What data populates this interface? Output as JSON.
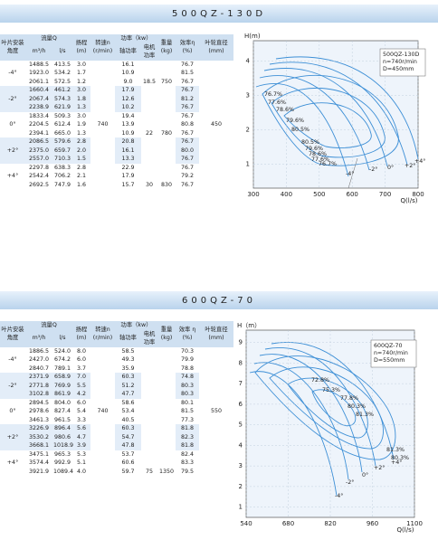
{
  "sections": [
    {
      "title": "500QZ-130D",
      "table": {
        "headers": {
          "angle": "叶片安装角度",
          "flow": "流量Q",
          "flow_m3h": "m³/h",
          "flow_ls": "l/s",
          "head": "扬程 (m)",
          "speed": "转速n (r/min)",
          "power": "功率（kw）",
          "shaft_power": "轴功率",
          "motor_power": "电机功率",
          "weight": "重量 (kg)",
          "efficiency": "效率η (%)",
          "diameter": "叶轮直径 (mm)"
        },
        "speed": "740",
        "diameter": "450",
        "blocks": [
          {
            "motor_power": "18.5",
            "weight": "750",
            "angles": [
              {
                "angle": "-4°",
                "rows": [
                  [
                    "1488.5",
                    "413.5",
                    "3.0",
                    "16.1",
                    "76.7"
                  ],
                  [
                    "1923.0",
                    "534.2",
                    "1.7",
                    "10.9",
                    "81.5"
                  ],
                  [
                    "2061.1",
                    "572.5",
                    "1.2",
                    "9.0",
                    "76.7"
                  ]
                ]
              }
            ]
          },
          {
            "motor_power": "22",
            "weight": "780",
            "angles": [
              {
                "angle": "-2°",
                "rows": [
                  [
                    "1660.4",
                    "461.2",
                    "3.0",
                    "17.9",
                    "76.7"
                  ],
                  [
                    "2067.4",
                    "574.3",
                    "1.8",
                    "12.6",
                    "81.2"
                  ],
                  [
                    "2238.9",
                    "621.9",
                    "1.3",
                    "10.2",
                    "76.7"
                  ]
                ]
              },
              {
                "angle": "0°",
                "rows": [
                  [
                    "1833.4",
                    "509.3",
                    "3.0",
                    "19.4",
                    "76.7"
                  ],
                  [
                    "2204.5",
                    "612.4",
                    "1.9",
                    "13.9",
                    "80.8"
                  ],
                  [
                    "2394.1",
                    "665.0",
                    "1.3",
                    "10.9",
                    "76.7"
                  ]
                ]
              }
            ]
          },
          {
            "motor_power": "30",
            "weight": "830",
            "angles": [
              {
                "angle": "+2°",
                "rows": [
                  [
                    "2086.5",
                    "579.6",
                    "2.8",
                    "20.8",
                    "76.7"
                  ],
                  [
                    "2375.0",
                    "659.7",
                    "2.0",
                    "16.1",
                    "80.0"
                  ],
                  [
                    "2557.0",
                    "710.3",
                    "1.5",
                    "13.3",
                    "76.7"
                  ]
                ]
              },
              {
                "angle": "+4°",
                "rows": [
                  [
                    "2297.8",
                    "638.3",
                    "2.8",
                    "22.9",
                    "76.7"
                  ],
                  [
                    "2542.4",
                    "706.2",
                    "2.1",
                    "17.9",
                    "79.2"
                  ],
                  [
                    "2692.5",
                    "747.9",
                    "1.6",
                    "15.7",
                    "76.7"
                  ]
                ]
              }
            ]
          }
        ]
      },
      "chart": {
        "y_label": "H(m)",
        "x_label": "Q(l/s)",
        "xlim": [
          300,
          800
        ],
        "ylim": [
          0.3,
          4.6
        ],
        "xticks": [
          300,
          400,
          500,
          600,
          700,
          800
        ],
        "yticks": [
          1,
          2,
          3,
          4
        ],
        "note": [
          "500QZ-130D",
          "n=740r/min",
          "D=450mm"
        ],
        "efficiency_labels": [
          "76.7%",
          "77.6%",
          "78.6%",
          "79.6%",
          "80.5%",
          "80.5%",
          "79.6%",
          "78.6%",
          "77.6%",
          "76.7%"
        ],
        "angle_labels": [
          "-4°",
          "-2°",
          "0°",
          "+2°",
          "+4°"
        ]
      }
    },
    {
      "title": "600QZ-70",
      "table": {
        "headers": {
          "angle": "叶片安装角度",
          "flow": "流量Q",
          "flow_m3h": "m³/h",
          "flow_ls": "l/s",
          "head": "扬程 (m)",
          "speed": "转速n (r/min)",
          "power": "功率（kw）",
          "shaft_power": "轴功率",
          "motor_power": "电机功率",
          "weight": "重量 (kg)",
          "efficiency": "效率 η (%)",
          "diameter": "叶轮直径 (mm)"
        },
        "speed": "740",
        "diameter": "550",
        "blocks": [
          {
            "motor_power": "75",
            "weight": "1350",
            "angles": [
              {
                "angle": "-4°",
                "rows": [
                  [
                    "1886.5",
                    "524.0",
                    "8.0",
                    "58.5",
                    "70.3"
                  ],
                  [
                    "2427.0",
                    "674.2",
                    "6.0",
                    "49.3",
                    "79.9"
                  ],
                  [
                    "2840.7",
                    "789.1",
                    "3.7",
                    "35.9",
                    "78.8"
                  ]
                ]
              },
              {
                "angle": "-2°",
                "rows": [
                  [
                    "2371.9",
                    "658.9",
                    "7.0",
                    "60.3",
                    "74.8"
                  ],
                  [
                    "2771.8",
                    "769.9",
                    "5.5",
                    "51.2",
                    "80.3"
                  ],
                  [
                    "3102.8",
                    "861.9",
                    "4.2",
                    "47.7",
                    "80.3"
                  ]
                ]
              },
              {
                "angle": "0°",
                "rows": [
                  [
                    "2894.5",
                    "804.0",
                    "6.0",
                    "58.6",
                    "80.1"
                  ],
                  [
                    "2978.6",
                    "827.4",
                    "5.4",
                    "53.4",
                    "81.5"
                  ],
                  [
                    "3461.3",
                    "961.5",
                    "3.3",
                    "40.5",
                    "77.3"
                  ]
                ]
              },
              {
                "angle": "+2°",
                "rows": [
                  [
                    "3226.9",
                    "896.4",
                    "5.6",
                    "60.3",
                    "81.8"
                  ],
                  [
                    "3530.2",
                    "980.6",
                    "4.7",
                    "54.7",
                    "82.3"
                  ],
                  [
                    "3668.1",
                    "1018.9",
                    "3.9",
                    "47.8",
                    "81.8"
                  ]
                ]
              },
              {
                "angle": "+4°",
                "rows": [
                  [
                    "3475.1",
                    "965.3",
                    "5.3",
                    "53.7",
                    "82.4"
                  ],
                  [
                    "3574.4",
                    "992.9",
                    "5.1",
                    "60.6",
                    "83.3"
                  ],
                  [
                    "3921.9",
                    "1089.4",
                    "4.0",
                    "59.7",
                    "79.5"
                  ]
                ]
              }
            ]
          }
        ]
      },
      "chart": {
        "y_label": "H（m）",
        "x_label": "Q(l/s)",
        "xlim": [
          540,
          1100
        ],
        "ylim": [
          0.5,
          9.6
        ],
        "xticks": [
          540,
          680,
          820,
          960,
          1100
        ],
        "yticks": [
          1,
          2,
          3,
          4,
          5,
          6,
          7,
          8,
          9
        ],
        "note": [
          "600QZ-70",
          "n=740r/min",
          "D=550mm"
        ],
        "efficiency_labels": [
          "72.8%",
          "75.3%",
          "77.8%",
          "80.3%",
          "81.3%",
          "81.3%",
          "80.3%"
        ],
        "angle_labels": [
          "-4°",
          "-2°",
          "0°",
          "+2°",
          "+4°"
        ]
      }
    }
  ]
}
